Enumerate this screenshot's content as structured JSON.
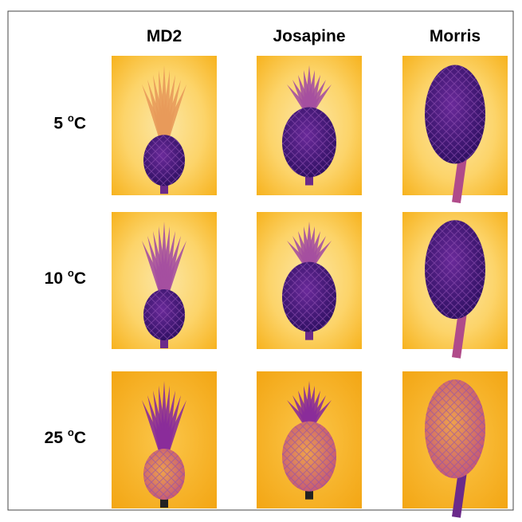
{
  "columns": [
    "MD2",
    "Josapine",
    "Morris"
  ],
  "rows": [
    {
      "number": "5",
      "degree": "o",
      "unit": "C"
    },
    {
      "number": "10",
      "degree": "o",
      "unit": "C"
    },
    {
      "number": "25",
      "degree": "o",
      "unit": "C"
    }
  ]
}
